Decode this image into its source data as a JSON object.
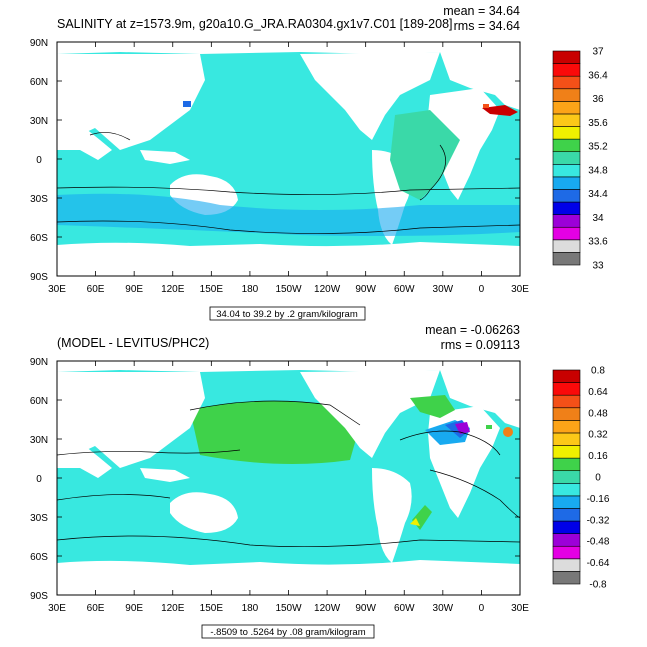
{
  "colors": {
    "ocean": "#38e8e0",
    "land": "#ffffff",
    "frame": "#000000",
    "palette": [
      "#787878",
      "#dcdcdc",
      "#e400e4",
      "#9c00d8",
      "#0000e8",
      "#1e6ae6",
      "#18aaf0",
      "#38e8e0",
      "#3ad9a8",
      "#3fd24a",
      "#f0f000",
      "#fcc818",
      "#fca418",
      "#f08018",
      "#f45018",
      "#fa0a0a",
      "#c80000"
    ]
  },
  "axes": {
    "x_ticks": [
      "30E",
      "60E",
      "90E",
      "120E",
      "150E",
      "180",
      "150W",
      "120W",
      "90W",
      "60W",
      "30W",
      "0",
      "30E"
    ],
    "y_ticks": [
      "90N",
      "60N",
      "30N",
      "0",
      "30S",
      "60S",
      "90S"
    ]
  },
  "panels": [
    {
      "title": "SALINITY at z=1573.9m, g20a10.G_JRA.RA0304.gx1v7.C01 [189-208]",
      "mean_text": "mean = 34.64",
      "rms_text": "rms = 34.64",
      "footnote": "34.04 to 39.2 by .2 gram/kilogram"
    },
    {
      "title": "(MODEL - LEVITUS/PHC2)",
      "mean_text": "mean = -0.06263",
      "rms_text": "rms = 0.09113",
      "footnote": "-.8509 to .5264 by .08 gram/kilogram"
    }
  ],
  "chart_data": [
    {
      "type": "heatmap",
      "title": "SALINITY at z=1573.9m, g20a10.G_JRA.RA0304.gx1v7.C01 [189-208]",
      "xlim": [
        30,
        390
      ],
      "ylim": [
        -90,
        90
      ],
      "units": "gram/kilogram",
      "colorbar": {
        "levels": [
          33.0,
          33.2,
          33.4,
          33.6,
          33.8,
          34.0,
          34.2,
          34.4,
          34.6,
          34.8,
          35.0,
          35.2,
          35.4,
          35.6,
          35.8,
          36.0,
          36.2,
          36.4,
          36.6,
          36.8,
          37.0
        ],
        "labels": [
          "33",
          "33.6",
          "34",
          "34.4",
          "34.8",
          "35.2",
          "35.6",
          "36",
          "36.4",
          "37"
        ]
      },
      "mean": 34.64,
      "rms": 34.64
    },
    {
      "type": "heatmap",
      "title": "(MODEL - LEVITUS/PHC2)",
      "xlim": [
        30,
        390
      ],
      "ylim": [
        -90,
        90
      ],
      "units": "gram/kilogram",
      "colorbar": {
        "levels": [
          -0.8,
          -0.72,
          -0.64,
          -0.56,
          -0.48,
          -0.4,
          -0.32,
          -0.24,
          -0.16,
          -0.08,
          0,
          0.08,
          0.16,
          0.24,
          0.32,
          0.4,
          0.48,
          0.56,
          0.64,
          0.72,
          0.8
        ],
        "labels": [
          "-0.8",
          "-0.64",
          "-0.48",
          "-0.32",
          "-0.16",
          "0",
          "0.16",
          "0.32",
          "0.48",
          "0.64",
          "0.8"
        ]
      },
      "mean": -0.06263,
      "rms": 0.09113
    }
  ]
}
